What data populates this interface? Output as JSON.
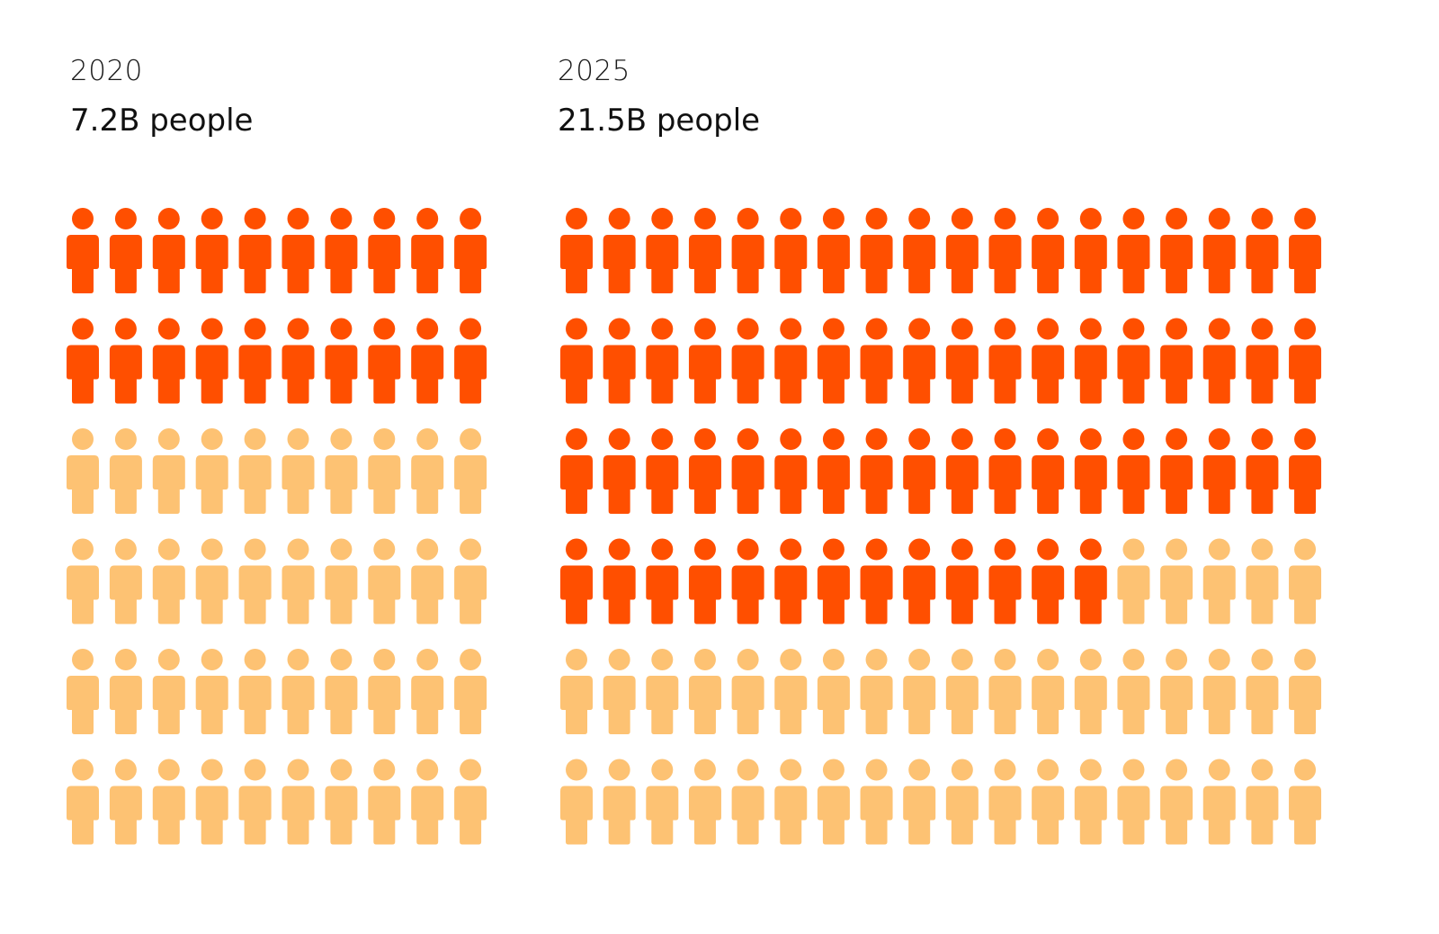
{
  "chart_data": [
    {
      "type": "pictogram",
      "year": "2020",
      "total": "7.2B people",
      "rows": 6,
      "columns": 10,
      "highlighted_icons": 20,
      "total_icons": 60,
      "colors": {
        "highlighted": "#FF4F00",
        "base": "#FDC273"
      }
    },
    {
      "type": "pictogram",
      "year": "2025",
      "total": "21.5B people",
      "rows": 6,
      "columns": 18,
      "highlighted_icons": 67,
      "total_icons": 108,
      "colors": {
        "highlighted": "#FF4F00",
        "base": "#FDC273"
      }
    }
  ]
}
